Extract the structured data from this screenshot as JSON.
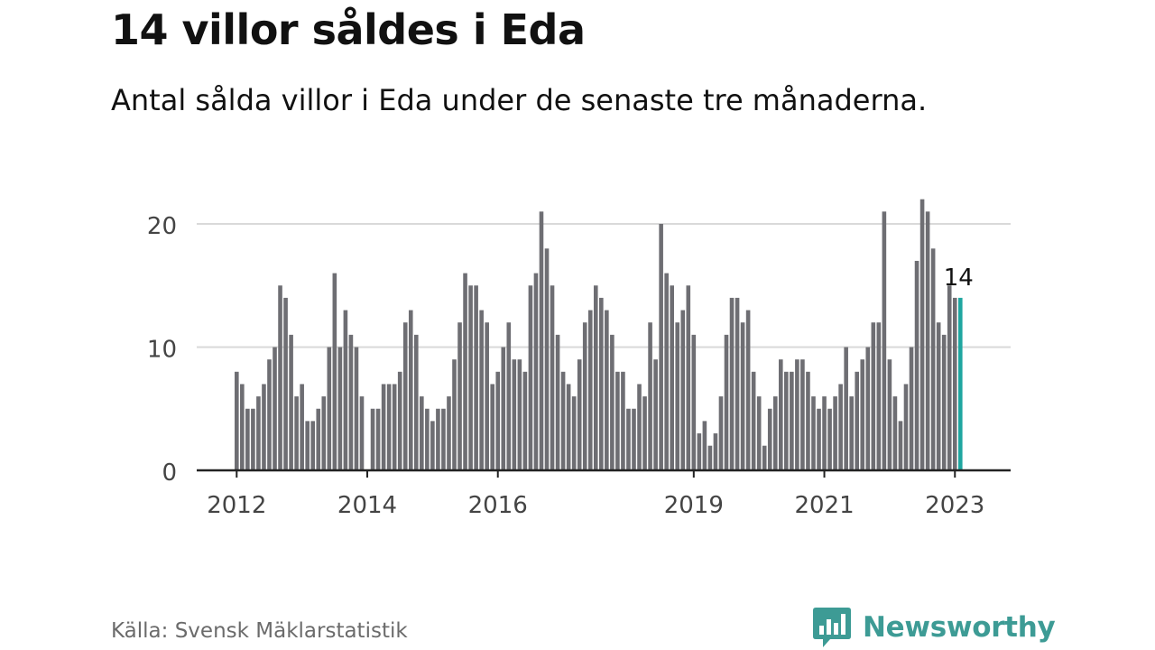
{
  "header": {
    "title": "14 villor såldes i Eda",
    "subtitle": "Antal sålda villor i Eda under de senaste tre månaderna."
  },
  "footer": {
    "source": "Källa: Svensk Mäklarstatistik",
    "brand": "Newsworthy"
  },
  "colors": {
    "bar": "#6e6e73",
    "highlight": "#1fa6a0",
    "grid": "#d9d9d9",
    "axis": "#222222",
    "brand": "#3d9b95"
  },
  "chart_data": {
    "type": "bar",
    "title": "14 villor såldes i Eda",
    "subtitle": "Antal sålda villor i Eda under de senaste tre månaderna.",
    "xlabel": "",
    "ylabel": "",
    "ylim": [
      0,
      22
    ],
    "yticks": [
      0,
      10,
      20
    ],
    "xticks": [
      "2012",
      "2014",
      "2016",
      "2019",
      "2021",
      "2023"
    ],
    "grid": true,
    "start": "2012-01",
    "frequency": "monthly",
    "values": [
      8,
      7,
      5,
      5,
      6,
      7,
      9,
      10,
      15,
      14,
      11,
      6,
      7,
      4,
      4,
      5,
      6,
      10,
      16,
      10,
      13,
      11,
      10,
      6,
      null,
      5,
      5,
      7,
      7,
      7,
      8,
      12,
      13,
      11,
      6,
      5,
      4,
      5,
      5,
      6,
      9,
      12,
      16,
      15,
      15,
      13,
      12,
      7,
      8,
      10,
      12,
      9,
      9,
      8,
      15,
      16,
      21,
      18,
      15,
      11,
      8,
      7,
      6,
      9,
      12,
      13,
      15,
      14,
      13,
      11,
      8,
      8,
      5,
      5,
      7,
      6,
      12,
      9,
      20,
      16,
      15,
      12,
      13,
      15,
      11,
      3,
      4,
      2,
      3,
      6,
      11,
      14,
      14,
      12,
      13,
      8,
      6,
      2,
      5,
      6,
      9,
      8,
      8,
      9,
      9,
      8,
      6,
      5,
      6,
      5,
      6,
      7,
      10,
      6,
      8,
      9,
      10,
      12,
      12,
      21,
      9,
      6,
      4,
      7,
      10,
      17,
      22,
      21,
      18,
      12,
      11,
      15,
      14,
      14
    ],
    "highlight_last": true,
    "last_value_label": "14"
  }
}
